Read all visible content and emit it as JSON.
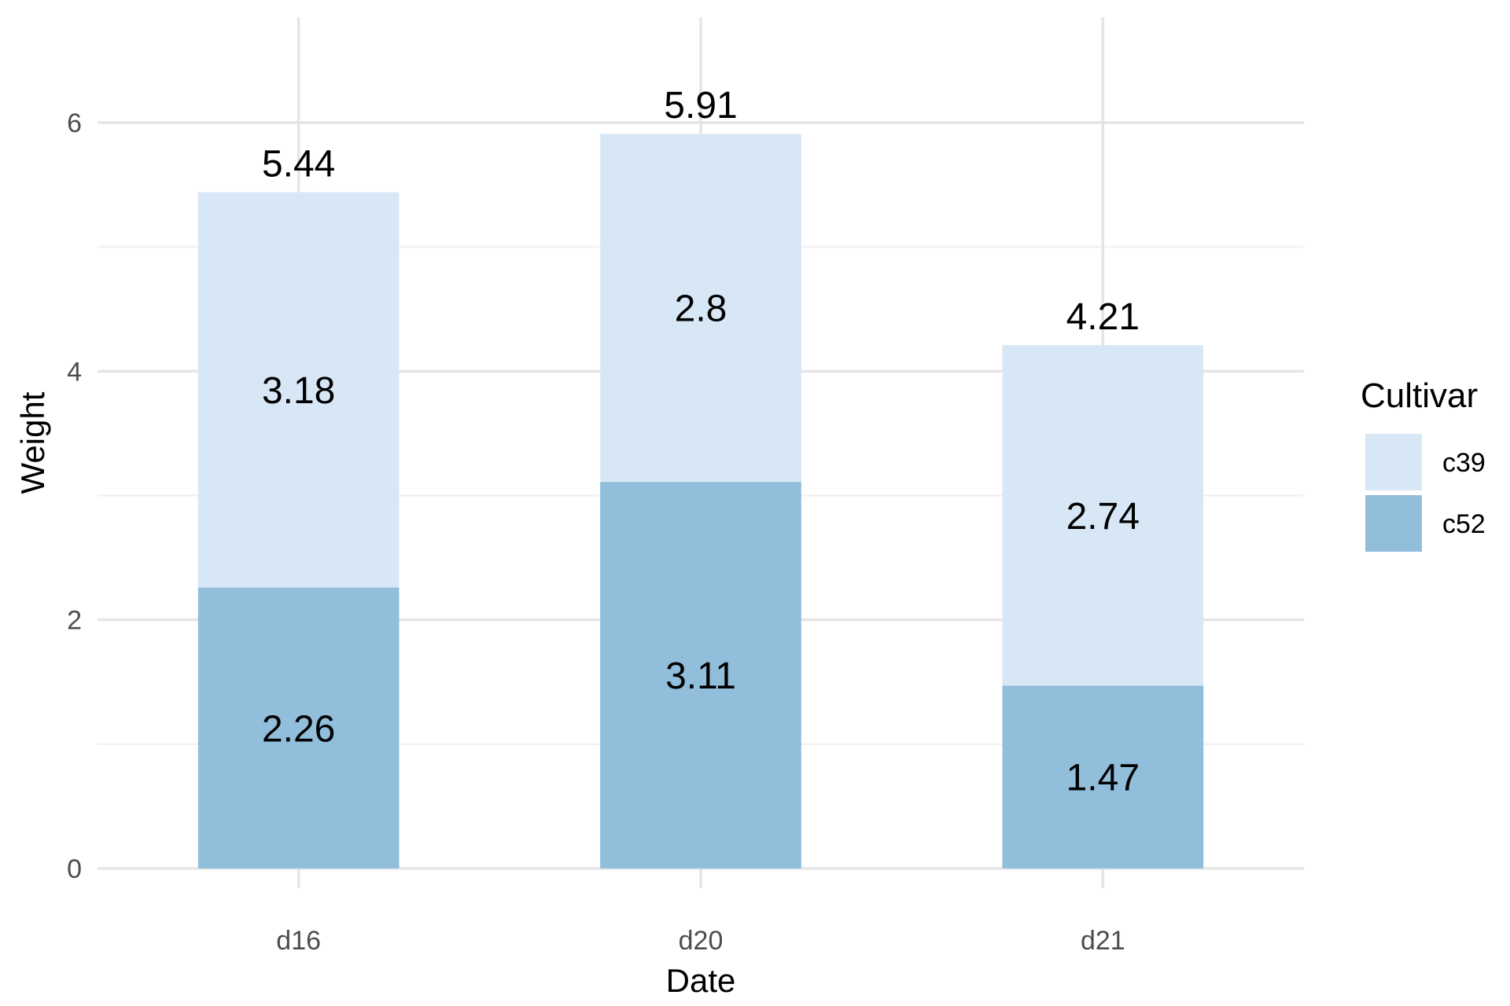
{
  "chart_data": {
    "type": "bar",
    "stacked": true,
    "categories": [
      "d16",
      "d20",
      "d21"
    ],
    "series": [
      {
        "name": "c52",
        "values": [
          2.26,
          3.11,
          1.47
        ],
        "color": "#91bedb"
      },
      {
        "name": "c39",
        "values": [
          3.18,
          2.8,
          2.74
        ],
        "color": "#d8e7f5"
      }
    ],
    "totals": [
      5.44,
      5.91,
      4.21
    ],
    "xlabel": "Date",
    "ylabel": "Weight",
    "ylim": [
      0,
      6.6
    ],
    "yticks": [
      0,
      2,
      4,
      6
    ],
    "grid": true,
    "legend": {
      "title": "Cultivar",
      "placement": "right",
      "entries": [
        {
          "label": "c39",
          "color": "#d8e7f5"
        },
        {
          "label": "c52",
          "color": "#91bedb"
        }
      ]
    }
  }
}
